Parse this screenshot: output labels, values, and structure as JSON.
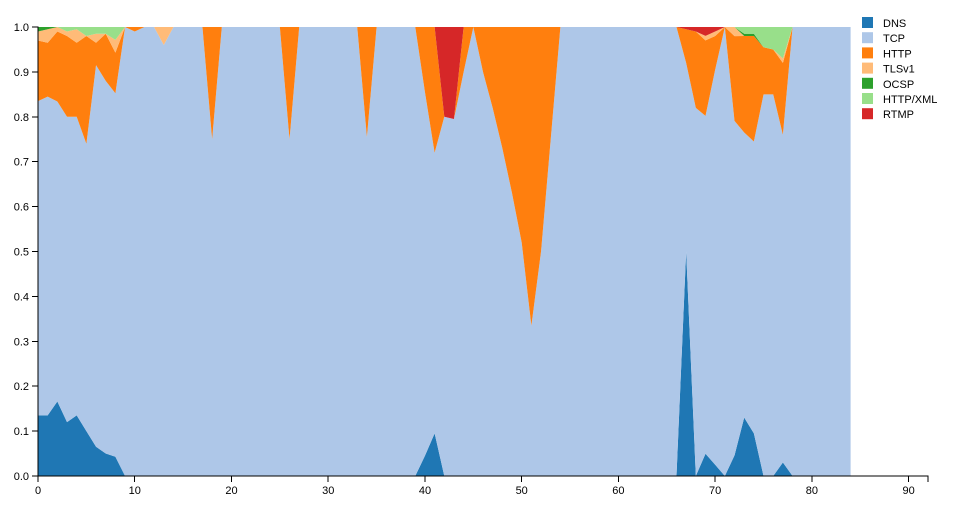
{
  "chart_data": {
    "type": "area",
    "stacked": true,
    "normalized": true,
    "xlim": [
      0,
      92
    ],
    "ylim": [
      0,
      1
    ],
    "x_ticks": [
      "0",
      "10",
      "20",
      "30",
      "40",
      "50",
      "60",
      "70",
      "80",
      "90"
    ],
    "y_ticks": [
      "0.0",
      "0.1",
      "0.2",
      "0.3",
      "0.4",
      "0.5",
      "0.6",
      "0.7",
      "0.8",
      "0.9",
      "1.0"
    ],
    "legend_position": "top-right",
    "grid": false,
    "x": [
      0,
      1,
      2,
      3,
      4,
      5,
      6,
      7,
      8,
      9,
      10,
      11,
      12,
      13,
      14,
      15,
      16,
      17,
      18,
      19,
      20,
      21,
      22,
      23,
      24,
      25,
      26,
      27,
      28,
      29,
      30,
      31,
      32,
      33,
      34,
      35,
      36,
      37,
      38,
      39,
      40,
      41,
      42,
      43,
      44,
      45,
      46,
      47,
      48,
      49,
      50,
      51,
      52,
      53,
      54,
      55,
      56,
      57,
      58,
      59,
      60,
      61,
      62,
      63,
      64,
      65,
      66,
      67,
      68,
      69,
      70,
      71,
      72,
      73,
      74,
      75,
      76,
      77,
      78,
      79,
      80,
      81,
      82,
      83,
      84
    ],
    "series": [
      {
        "name": "DNS",
        "color": "#1f77b4",
        "values": [
          0.135,
          0.135,
          0.165,
          0.12,
          0.135,
          0.1,
          0.065,
          0.05,
          0.045,
          0,
          0,
          0,
          0,
          0,
          0,
          0,
          0,
          0,
          0,
          0,
          0,
          0,
          0,
          0,
          0,
          0,
          0,
          0,
          0,
          0,
          0,
          0,
          0,
          0,
          0,
          0,
          0,
          0,
          0,
          0,
          0.045,
          0.095,
          0,
          0,
          0,
          0,
          0,
          0,
          0,
          0,
          0,
          0,
          0,
          0,
          0,
          0,
          0,
          0,
          0,
          0,
          0,
          0,
          0,
          0,
          0,
          0,
          0,
          0.5,
          0,
          0.05,
          0.025,
          0,
          0.045,
          0.13,
          0.095,
          0,
          0,
          0.03,
          0,
          0,
          0,
          0,
          0,
          0,
          0
        ]
      },
      {
        "name": "TCP",
        "color": "#aec7e8",
        "values": [
          0.7,
          0.71,
          0.665,
          0.68,
          0.665,
          0.64,
          0.85,
          0.83,
          0.85,
          1,
          0.99,
          1,
          1,
          0.96,
          1,
          1,
          1,
          1,
          0.75,
          1,
          1,
          1,
          1,
          1,
          1,
          1,
          0.75,
          1,
          1,
          1,
          1,
          1,
          1,
          1,
          0.755,
          1,
          1,
          1,
          1,
          1,
          0.81,
          0.625,
          0.8,
          0.795,
          0.9,
          1,
          0.9,
          0.82,
          0.73,
          0.63,
          0.52,
          0.335,
          0.5,
          0.75,
          1,
          1,
          1,
          1,
          1,
          1,
          1,
          1,
          1,
          1,
          1,
          1,
          1,
          0.42,
          0.82,
          0.76,
          0.88,
          1,
          0.73,
          0.635,
          0.65,
          0.85,
          0.85,
          0.73,
          1,
          1,
          1,
          1,
          1,
          1,
          1
        ]
      },
      {
        "name": "HTTP",
        "color": "#ff7f0e",
        "values": [
          0.135,
          0.12,
          0.155,
          0.18,
          0.165,
          0.24,
          0.05,
          0.105,
          0.095,
          0,
          0.01,
          0,
          0,
          0,
          0,
          0,
          0,
          0,
          0.25,
          0,
          0,
          0,
          0,
          0,
          0,
          0,
          0.25,
          0,
          0,
          0,
          0,
          0,
          0,
          0,
          0.245,
          0,
          0,
          0,
          0,
          0,
          0.145,
          0.28,
          0,
          0,
          0.1,
          0,
          0.1,
          0.18,
          0.27,
          0.37,
          0.48,
          0.665,
          0.5,
          0.25,
          0,
          0,
          0,
          0,
          0,
          0,
          0,
          0,
          0,
          0,
          0,
          0,
          0,
          0.075,
          0.17,
          0.17,
          0.075,
          0,
          0.185,
          0.215,
          0.235,
          0.105,
          0.1,
          0.16,
          0,
          0,
          0,
          0,
          0,
          0,
          0
        ]
      },
      {
        "name": "TLSv1",
        "color": "#ffbb78",
        "values": [
          0.02,
          0.03,
          0.01,
          0.01,
          0.03,
          0,
          0.02,
          0,
          0.03,
          0,
          0,
          0,
          0,
          0.04,
          0,
          0,
          0,
          0,
          0,
          0,
          0,
          0,
          0,
          0,
          0,
          0,
          0,
          0,
          0,
          0,
          0,
          0,
          0,
          0,
          0,
          0,
          0,
          0,
          0,
          0,
          0,
          0,
          0,
          0,
          0,
          0,
          0,
          0,
          0,
          0,
          0,
          0,
          0,
          0,
          0,
          0,
          0,
          0,
          0,
          0,
          0,
          0,
          0,
          0,
          0,
          0,
          0,
          0,
          0,
          0.01,
          0.01,
          0,
          0.02,
          0,
          0,
          0,
          0,
          0.01,
          0,
          0,
          0,
          0,
          0,
          0,
          0
        ]
      },
      {
        "name": "OCSP",
        "color": "#2ca02c",
        "values": [
          0.01,
          0.005,
          0,
          0,
          0,
          0,
          0,
          0,
          0,
          0,
          0,
          0,
          0,
          0,
          0,
          0,
          0,
          0,
          0,
          0,
          0,
          0,
          0,
          0,
          0,
          0,
          0,
          0,
          0,
          0,
          0,
          0,
          0,
          0,
          0,
          0,
          0,
          0,
          0,
          0,
          0,
          0,
          0,
          0,
          0,
          0,
          0,
          0,
          0,
          0,
          0,
          0,
          0,
          0,
          0,
          0,
          0,
          0,
          0,
          0,
          0,
          0,
          0,
          0,
          0,
          0,
          0,
          0,
          0,
          0,
          0,
          0,
          0,
          0.005,
          0.005,
          0,
          0,
          0,
          0,
          0,
          0,
          0,
          0,
          0,
          0
        ]
      },
      {
        "name": "HTTP/XML",
        "color": "#98df8a",
        "values": [
          0,
          0,
          0,
          0.01,
          0.005,
          0.02,
          0.015,
          0.015,
          0.03,
          0,
          0,
          0,
          0,
          0,
          0,
          0,
          0,
          0,
          0,
          0,
          0,
          0,
          0,
          0,
          0,
          0,
          0,
          0,
          0,
          0,
          0,
          0,
          0,
          0,
          0,
          0,
          0,
          0,
          0,
          0,
          0,
          0,
          0,
          0,
          0,
          0,
          0,
          0,
          0,
          0,
          0,
          0,
          0,
          0,
          0,
          0,
          0,
          0,
          0,
          0,
          0,
          0,
          0,
          0,
          0,
          0,
          0,
          0,
          0,
          0,
          0,
          0,
          0,
          0.015,
          0.015,
          0.045,
          0.05,
          0.07,
          0,
          0,
          0,
          0,
          0,
          0,
          0
        ]
      },
      {
        "name": "RTMP",
        "color": "#d62728",
        "values": [
          0,
          0,
          0,
          0,
          0,
          0,
          0,
          0,
          0,
          0,
          0,
          0,
          0,
          0,
          0,
          0,
          0,
          0,
          0,
          0,
          0,
          0,
          0,
          0,
          0,
          0,
          0,
          0,
          0,
          0,
          0,
          0,
          0,
          0,
          0,
          0,
          0,
          0,
          0,
          0,
          0,
          0,
          0.2,
          0.205,
          0,
          0,
          0,
          0,
          0,
          0,
          0,
          0,
          0,
          0,
          0,
          0,
          0,
          0,
          0,
          0,
          0,
          0,
          0,
          0,
          0,
          0,
          0,
          0.005,
          0.01,
          0.02,
          0.01,
          0,
          0,
          0,
          0,
          0,
          0,
          0,
          0,
          0,
          0,
          0,
          0,
          0,
          0
        ]
      }
    ]
  }
}
